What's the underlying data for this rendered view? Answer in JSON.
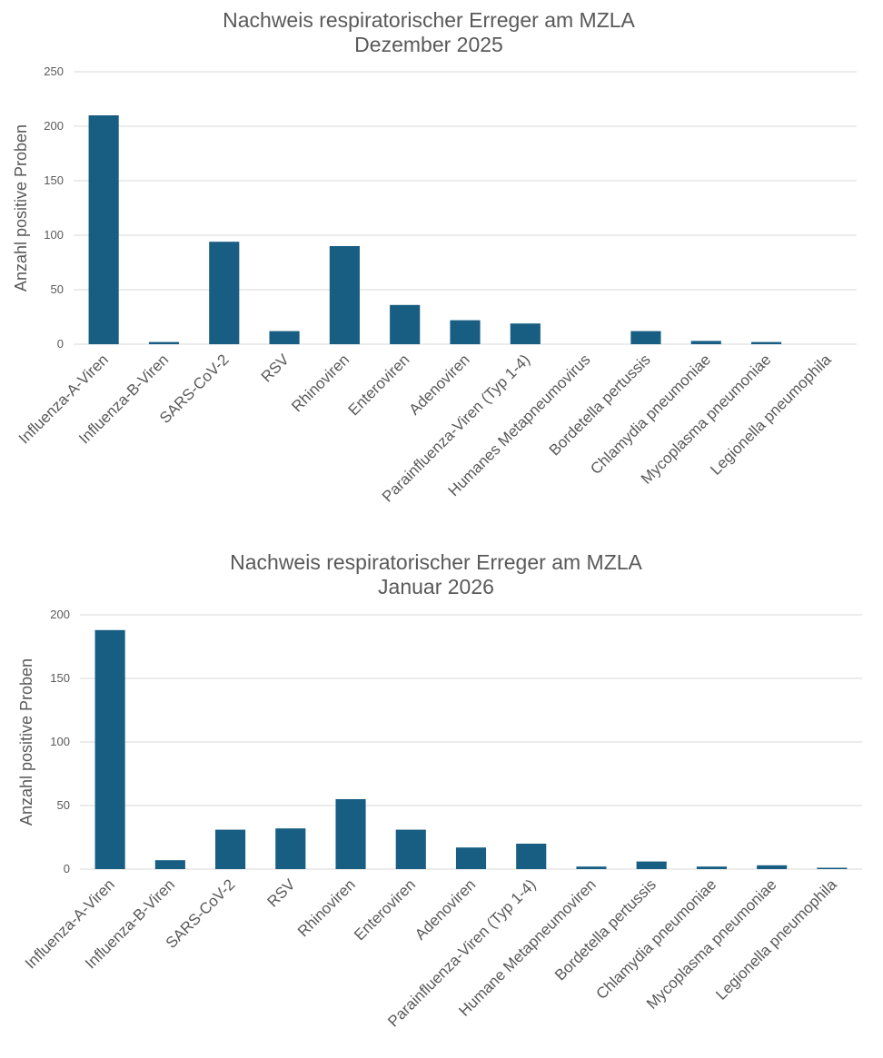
{
  "colors": {
    "bar": "#175e82",
    "grid": "#d9d9d9",
    "text": "#595959"
  },
  "chart_data": [
    {
      "type": "bar",
      "title": "Nachweis respiratorischer Erreger am MZLA",
      "subtitle": "Dezember 2025",
      "xlabel": "",
      "ylabel": "Anzahl positive Proben",
      "ylim": [
        0,
        250
      ],
      "yticks": [
        0,
        50,
        100,
        150,
        200,
        250
      ],
      "grid": true,
      "categories": [
        "Influenza-A-Viren",
        "Influenza-B-Viren",
        "SARS-CoV-2",
        "RSV",
        "Rhinoviren",
        "Enteroviren",
        "Adenoviren",
        "Parainfluenza-Viren (Typ 1-4)",
        "Humanes Metapneumovirus",
        "Bordetella pertussis",
        "Chlamydia pneumoniae",
        "Mycoplasma pneumoniae",
        "Legionella pneumophila"
      ],
      "values": [
        210,
        2,
        94,
        12,
        90,
        36,
        22,
        19,
        0,
        12,
        3,
        2,
        0
      ]
    },
    {
      "type": "bar",
      "title": "Nachweis respiratorischer Erreger am MZLA",
      "subtitle": "Januar 2026",
      "xlabel": "",
      "ylabel": "Anzahl positive Proben",
      "ylim": [
        0,
        200
      ],
      "yticks": [
        0,
        50,
        100,
        150,
        200
      ],
      "grid": true,
      "categories": [
        "Influenza-A-Viren",
        "Influenza-B-Viren",
        "SARS-CoV-2",
        "RSV",
        "Rhinoviren",
        "Enteroviren",
        "Adenoviren",
        "Parainfluenza-Viren (Typ 1-4)",
        "Humane Metapneumoviren",
        "Bordetella pertussis",
        "Chlamydia pneumoniae",
        "Mycoplasma pneumoniae",
        "Legionella pneumophila"
      ],
      "values": [
        188,
        7,
        31,
        32,
        55,
        31,
        17,
        20,
        2,
        6,
        2,
        3,
        1
      ]
    }
  ]
}
